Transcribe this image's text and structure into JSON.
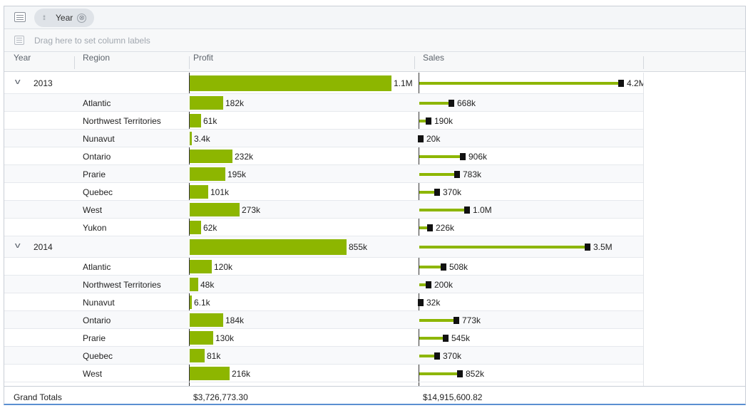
{
  "group_bar": {
    "chip_label": "Year",
    "chip_close": "⊗",
    "chip_drag_glyph": "⁞⁞"
  },
  "column_labels_bar": {
    "placeholder": "Drag here to set column labels"
  },
  "headers": {
    "year": "Year",
    "region": "Region",
    "profit": "Profit",
    "sales": "Sales"
  },
  "chart_data": {
    "type": "table",
    "series": [
      {
        "name": "Profit"
      },
      {
        "name": "Sales"
      }
    ],
    "profit_max_k": 1100,
    "sales_max_k": 4200,
    "groups": [
      {
        "year": "2013",
        "toggle": "v",
        "profit": {
          "value_k": 1100,
          "label": "1.1M"
        },
        "sales": {
          "value_k": 4200,
          "label": "4.2M"
        },
        "rows": [
          {
            "region": "Atlantic",
            "profit": {
              "value_k": 182,
              "label": "182k"
            },
            "sales": {
              "value_k": 668,
              "label": "668k"
            }
          },
          {
            "region": "Northwest Territories",
            "profit": {
              "value_k": 61,
              "label": "61k"
            },
            "sales": {
              "value_k": 190,
              "label": "190k"
            }
          },
          {
            "region": "Nunavut",
            "profit": {
              "value_k": 3.4,
              "label": "3.4k"
            },
            "sales": {
              "value_k": 20,
              "label": "20k"
            }
          },
          {
            "region": "Ontario",
            "profit": {
              "value_k": 232,
              "label": "232k"
            },
            "sales": {
              "value_k": 906,
              "label": "906k"
            }
          },
          {
            "region": "Prarie",
            "profit": {
              "value_k": 195,
              "label": "195k"
            },
            "sales": {
              "value_k": 783,
              "label": "783k"
            }
          },
          {
            "region": "Quebec",
            "profit": {
              "value_k": 101,
              "label": "101k"
            },
            "sales": {
              "value_k": 370,
              "label": "370k"
            }
          },
          {
            "region": "West",
            "profit": {
              "value_k": 273,
              "label": "273k"
            },
            "sales": {
              "value_k": 1000,
              "label": "1.0M"
            }
          },
          {
            "region": "Yukon",
            "profit": {
              "value_k": 62,
              "label": "62k"
            },
            "sales": {
              "value_k": 226,
              "label": "226k"
            }
          }
        ]
      },
      {
        "year": "2014",
        "toggle": "v",
        "profit": {
          "value_k": 855,
          "label": "855k"
        },
        "sales": {
          "value_k": 3500,
          "label": "3.5M"
        },
        "rows": [
          {
            "region": "Atlantic",
            "profit": {
              "value_k": 120,
              "label": "120k"
            },
            "sales": {
              "value_k": 508,
              "label": "508k"
            }
          },
          {
            "region": "Northwest Territories",
            "profit": {
              "value_k": 48,
              "label": "48k"
            },
            "sales": {
              "value_k": 200,
              "label": "200k"
            }
          },
          {
            "region": "Nunavut",
            "profit": {
              "value_k": 6.1,
              "label": "6.1k"
            },
            "sales": {
              "value_k": 32,
              "label": "32k"
            }
          },
          {
            "region": "Ontario",
            "profit": {
              "value_k": 184,
              "label": "184k"
            },
            "sales": {
              "value_k": 773,
              "label": "773k"
            }
          },
          {
            "region": "Prarie",
            "profit": {
              "value_k": 130,
              "label": "130k"
            },
            "sales": {
              "value_k": 545,
              "label": "545k"
            }
          },
          {
            "region": "Quebec",
            "profit": {
              "value_k": 81,
              "label": "81k"
            },
            "sales": {
              "value_k": 370,
              "label": "370k"
            }
          },
          {
            "region": "West",
            "profit": {
              "value_k": 216,
              "label": "216k"
            },
            "sales": {
              "value_k": 852,
              "label": "852k"
            }
          }
        ]
      }
    ]
  },
  "footer": {
    "label": "Grand Totals",
    "profit_total": "$3,726,773.30",
    "sales_total": "$14,915,600.82"
  },
  "colors": {
    "bar": "#8db600",
    "marker": "#111111",
    "accent_border": "#5b8fd1"
  }
}
